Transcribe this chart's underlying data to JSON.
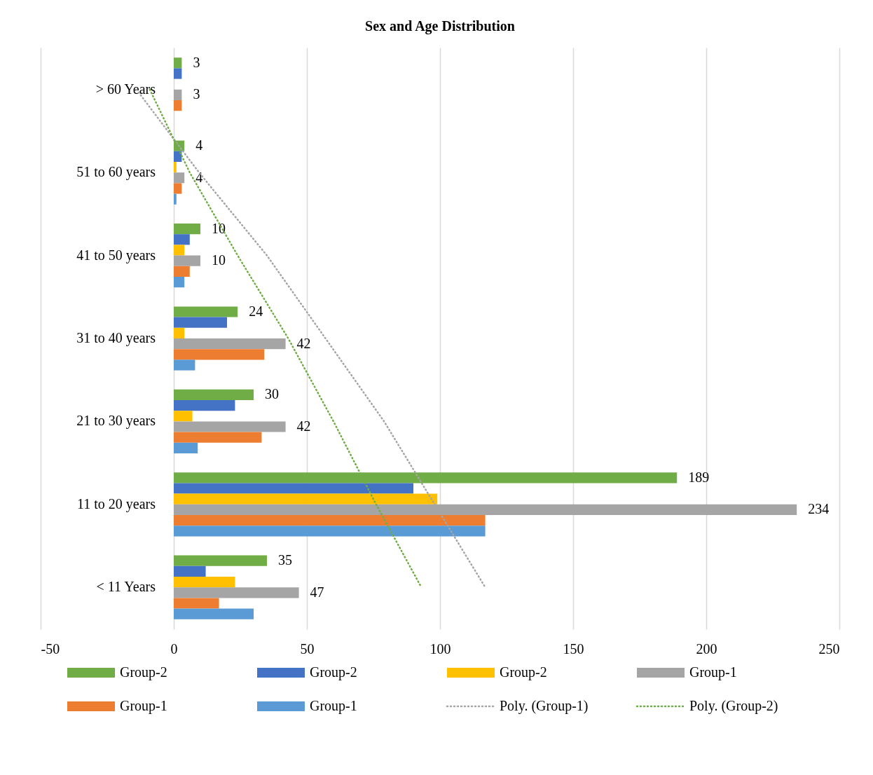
{
  "chart_data": {
    "type": "bar",
    "orientation": "horizontal",
    "title": "Sex and Age Distribution",
    "categories": [
      "> 60 Years",
      "51 to 60 years",
      "41 to 50 years",
      "31 to 40 years",
      "21 to 30 years",
      "11 to 20 years",
      "< 11 Years"
    ],
    "series": [
      {
        "name": "Group-2",
        "color": "#70ad47",
        "values": [
          3,
          4,
          10,
          24,
          30,
          189,
          35
        ],
        "value_labels": [
          "3",
          "4",
          "10",
          "24",
          "30",
          "189",
          "35"
        ]
      },
      {
        "name": "Group-2",
        "color": "#4472c4",
        "values": [
          3,
          3,
          6,
          20,
          23,
          90,
          12
        ]
      },
      {
        "name": "Group-2",
        "color": "#ffc000",
        "values": [
          0,
          1,
          4,
          4,
          7,
          99,
          23
        ]
      },
      {
        "name": "Group-1",
        "color": "#a5a5a5",
        "values": [
          3,
          4,
          10,
          42,
          42,
          234,
          47
        ],
        "value_labels": [
          "3",
          "4",
          "10",
          "42",
          "42",
          "234",
          "47"
        ]
      },
      {
        "name": "Group-1",
        "color": "#ed7d31",
        "values": [
          3,
          3,
          6,
          34,
          33,
          117,
          17
        ]
      },
      {
        "name": "Group-1",
        "color": "#5b9bd5",
        "values": [
          0,
          1,
          4,
          8,
          9,
          117,
          30
        ]
      },
      {
        "name": "Poly. (Group-1)",
        "type": "line",
        "line_style": "dotted",
        "color": "#a5a5a5",
        "values": [
          -14,
          9.5,
          35,
          57,
          79,
          98,
          117
        ]
      },
      {
        "name": "Poly. (Group-2)",
        "type": "line",
        "line_style": "dotted",
        "color": "#70ad47",
        "values": [
          -9,
          6,
          24,
          43,
          60,
          76,
          93
        ]
      }
    ],
    "xlim": [
      -50,
      250
    ],
    "xticks": [
      -50,
      0,
      50,
      100,
      150,
      200,
      250
    ],
    "grid": "x",
    "legend": "bottom"
  }
}
